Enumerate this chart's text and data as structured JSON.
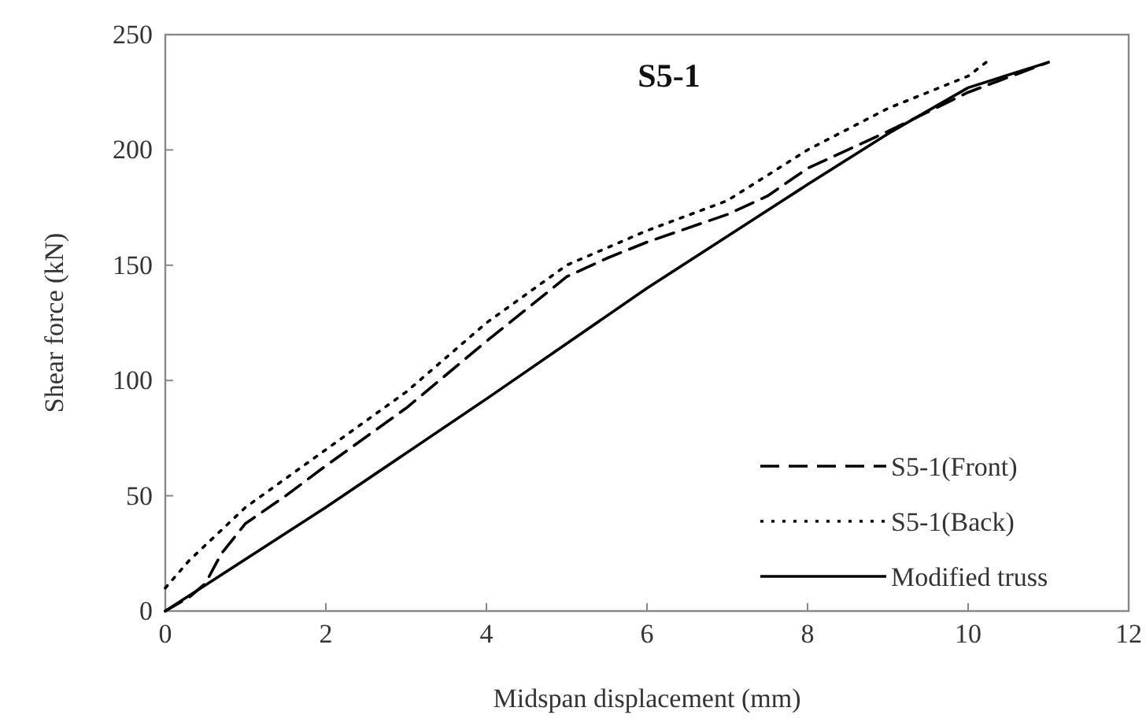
{
  "chart_data": {
    "type": "line",
    "title": "S5-1",
    "xlabel": "Midspan displacement (mm)",
    "ylabel": "Shear force (kN)",
    "xlim": [
      0,
      12
    ],
    "xticks": [
      0,
      2,
      4,
      6,
      8,
      10,
      12
    ],
    "ylim": [
      0,
      250
    ],
    "yticks": [
      0,
      50,
      100,
      150,
      200,
      250
    ],
    "legend": "bottom right",
    "grid": false,
    "series": [
      {
        "name": "S5-1(Front)",
        "color": "#000000",
        "line_style": "dashed",
        "x": [
          0,
          0.3,
          0.5,
          0.7,
          1,
          1.5,
          2,
          3,
          4,
          5,
          5.5,
          6,
          7,
          7.5,
          8,
          9,
          10,
          11
        ],
        "values": [
          0,
          6,
          12,
          25,
          38,
          50,
          63,
          88,
          117,
          145,
          153,
          160,
          172,
          180,
          192,
          208,
          225,
          238
        ]
      },
      {
        "name": "S5-1(Back)",
        "color": "#000000",
        "line_style": "dotted",
        "x": [
          0,
          0.3,
          1,
          2,
          3,
          4,
          5,
          6,
          7,
          8,
          9,
          10,
          10.3
        ],
        "values": [
          10,
          22,
          45,
          70,
          95,
          125,
          150,
          165,
          178,
          200,
          218,
          232,
          240
        ]
      },
      {
        "name": "Modified truss",
        "color": "#000000",
        "line_style": "solid",
        "x": [
          0,
          2,
          4,
          6,
          8,
          9,
          10,
          11
        ],
        "values": [
          0,
          45,
          92,
          140,
          185,
          207,
          227,
          238
        ]
      }
    ]
  }
}
